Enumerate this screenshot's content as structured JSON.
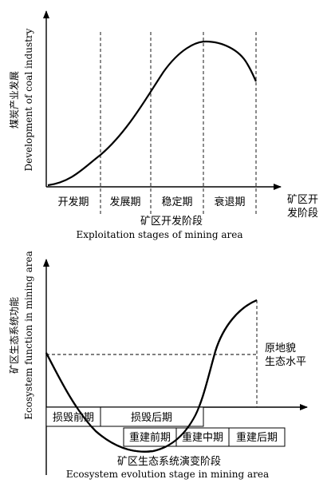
{
  "top_chart": {
    "ylabel_cn": "煤炭产业发展",
    "ylabel_en": "Development of coal industry",
    "stages": [
      "开发期",
      "发展期",
      "稳定期",
      "衰退期"
    ],
    "axis_end_label": [
      "矿区开",
      "发阶段"
    ],
    "caption_cn": "矿区开发阶段",
    "caption_en": "Exploitation stages of mining area"
  },
  "bottom_chart": {
    "ylabel_cn": "矿区生态系统功能",
    "ylabel_en": "Ecosystem function in mining area",
    "baseline_label": [
      "原地貌",
      "生态水平"
    ],
    "damage_stages": [
      "损毁前期",
      "损毁后期"
    ],
    "rebuild_stages": [
      "重建前期",
      "重建中期",
      "重建后期"
    ],
    "caption_cn": "矿区生态系统演变阶段",
    "caption_en": "Ecosystem evolution stage in mining area"
  }
}
